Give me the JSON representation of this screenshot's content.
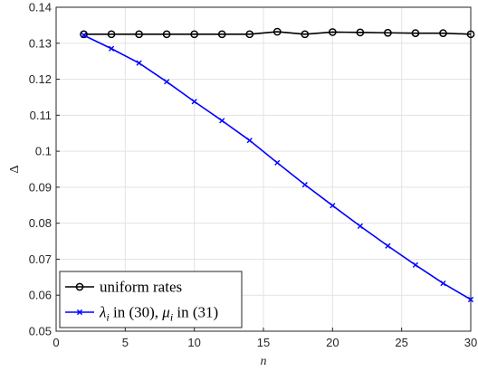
{
  "chart_data": {
    "type": "line",
    "xlabel": "n",
    "ylabel": "Δ",
    "xlim": [
      0,
      30
    ],
    "ylim": [
      0.05,
      0.14
    ],
    "xticks": [
      "0",
      "5",
      "10",
      "15",
      "20",
      "25",
      "30"
    ],
    "yticks": [
      "0.05",
      "0.06",
      "0.07",
      "0.08",
      "0.09",
      "0.1",
      "0.11",
      "0.12",
      "0.13",
      "0.14"
    ],
    "grid": true,
    "legend_position": "bottom-left",
    "series": [
      {
        "name": "uniform rates",
        "color": "#000000",
        "marker": "circle",
        "x": [
          2,
          4,
          6,
          8,
          10,
          12,
          14,
          16,
          18,
          20,
          22,
          24,
          26,
          28,
          30
        ],
        "y": [
          0.1325,
          0.1325,
          0.1325,
          0.1325,
          0.1325,
          0.1325,
          0.1325,
          0.1332,
          0.1325,
          0.1331,
          0.133,
          0.1329,
          0.1328,
          0.1328,
          0.1325
        ]
      },
      {
        "name": "λ_i in (30), μ_i in (31)",
        "color": "#0000ff",
        "marker": "x",
        "x": [
          2,
          4,
          6,
          8,
          10,
          12,
          14,
          16,
          18,
          20,
          22,
          24,
          26,
          28,
          30
        ],
        "y": [
          0.1322,
          0.1285,
          0.1245,
          0.1193,
          0.1138,
          0.1085,
          0.103,
          0.0968,
          0.0907,
          0.0849,
          0.0792,
          0.0737,
          0.0684,
          0.0633,
          0.0588
        ]
      }
    ]
  }
}
